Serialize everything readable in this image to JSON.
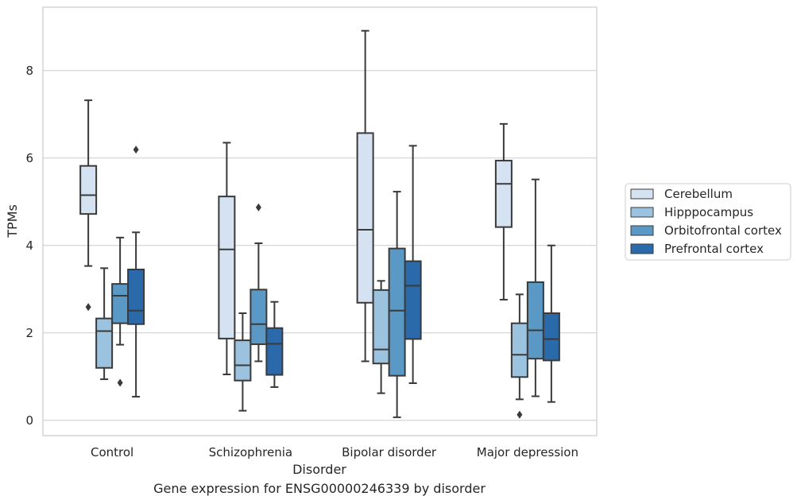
{
  "caption": "Gene expression for ENSG00000246339 by disorder",
  "chart_data": {
    "type": "box",
    "xlabel": "Disorder",
    "ylabel": "TPMs",
    "ylim": [
      -0.35,
      9.45
    ],
    "yticks": [
      0,
      2,
      4,
      6,
      8
    ],
    "grid": "horizontal",
    "legend_position": "right",
    "categories": [
      "Control",
      "Schizophrenia",
      "Bipolar disorder",
      "Major depression"
    ],
    "series": [
      {
        "name": "Cerebellum",
        "color": "#d4e2f1",
        "boxes": [
          {
            "whisker_low": 3.53,
            "q1": 4.72,
            "median": 5.15,
            "q3": 5.82,
            "whisker_high": 7.32,
            "outliers": [
              2.59
            ]
          },
          {
            "whisker_low": 1.05,
            "q1": 1.87,
            "median": 3.91,
            "q3": 5.12,
            "whisker_high": 6.35,
            "outliers": []
          },
          {
            "whisker_low": 1.35,
            "q1": 2.69,
            "median": 4.36,
            "q3": 6.57,
            "whisker_high": 8.91,
            "outliers": []
          },
          {
            "whisker_low": 2.76,
            "q1": 4.42,
            "median": 5.41,
            "q3": 5.94,
            "whisker_high": 6.78,
            "outliers": []
          }
        ]
      },
      {
        "name": "Hipppocampus",
        "color": "#9bc2de",
        "boxes": [
          {
            "whisker_low": 0.94,
            "q1": 1.2,
            "median": 2.04,
            "q3": 2.33,
            "whisker_high": 3.48,
            "outliers": []
          },
          {
            "whisker_low": 0.22,
            "q1": 0.91,
            "median": 1.26,
            "q3": 1.83,
            "whisker_high": 2.45,
            "outliers": []
          },
          {
            "whisker_low": 0.62,
            "q1": 1.3,
            "median": 1.62,
            "q3": 2.98,
            "whisker_high": 3.19,
            "outliers": []
          },
          {
            "whisker_low": 0.48,
            "q1": 0.99,
            "median": 1.5,
            "q3": 2.22,
            "whisker_high": 2.88,
            "outliers": [
              0.13
            ]
          }
        ]
      },
      {
        "name": "Orbitofrontal cortex",
        "color": "#5a98c6",
        "boxes": [
          {
            "whisker_low": 1.73,
            "q1": 2.22,
            "median": 2.85,
            "q3": 3.12,
            "whisker_high": 4.18,
            "outliers": [
              0.86
            ]
          },
          {
            "whisker_low": 1.35,
            "q1": 1.74,
            "median": 2.2,
            "q3": 2.99,
            "whisker_high": 4.05,
            "outliers": [
              4.87
            ]
          },
          {
            "whisker_low": 0.07,
            "q1": 1.02,
            "median": 2.51,
            "q3": 3.93,
            "whisker_high": 5.23,
            "outliers": []
          },
          {
            "whisker_low": 0.55,
            "q1": 1.41,
            "median": 2.06,
            "q3": 3.16,
            "whisker_high": 5.51,
            "outliers": []
          }
        ]
      },
      {
        "name": "Prefrontal cortex",
        "color": "#2a6aaa",
        "boxes": [
          {
            "whisker_low": 0.54,
            "q1": 2.2,
            "median": 2.51,
            "q3": 3.45,
            "whisker_high": 4.3,
            "outliers": [
              6.19
            ]
          },
          {
            "whisker_low": 0.76,
            "q1": 1.04,
            "median": 1.75,
            "q3": 2.11,
            "whisker_high": 2.71,
            "outliers": []
          },
          {
            "whisker_low": 0.85,
            "q1": 1.86,
            "median": 3.08,
            "q3": 3.64,
            "whisker_high": 6.28,
            "outliers": []
          },
          {
            "whisker_low": 0.42,
            "q1": 1.37,
            "median": 1.86,
            "q3": 2.45,
            "whisker_high": 4.0,
            "outliers": []
          }
        ]
      }
    ]
  }
}
